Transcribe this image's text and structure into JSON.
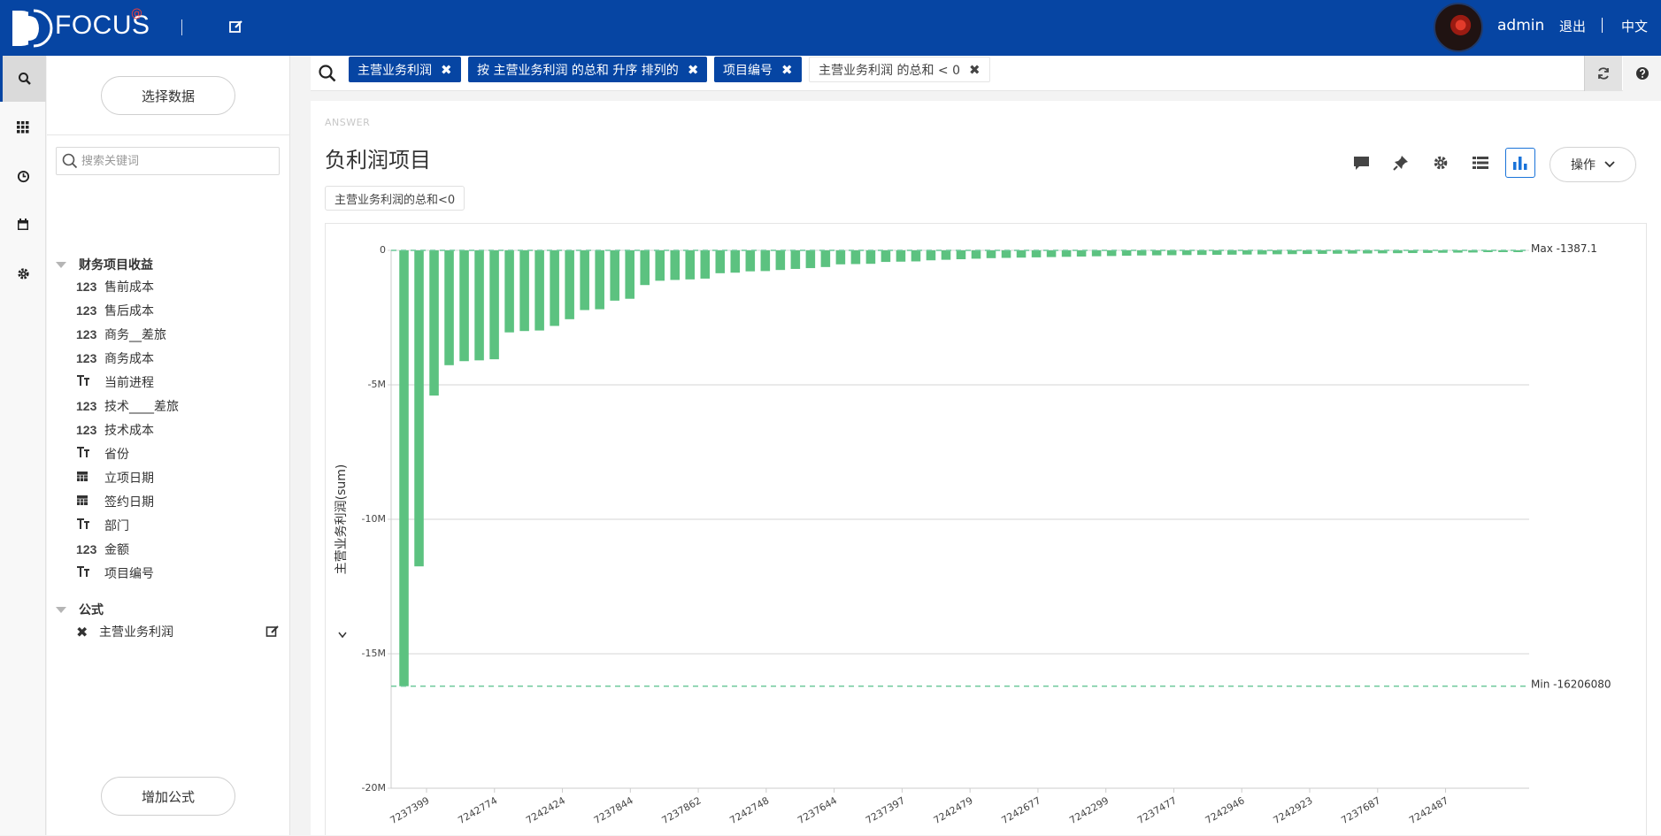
{
  "app": {
    "logo_text": "FOCUS",
    "logo_mark": "@",
    "username": "admin",
    "logout": "退出",
    "language": "中文",
    "brand_color": "#0645a3"
  },
  "rail": {
    "items": [
      {
        "icon": "search-icon"
      },
      {
        "icon": "grid-icon"
      },
      {
        "icon": "history-icon"
      },
      {
        "icon": "calendar-icon"
      },
      {
        "icon": "gear-icon"
      }
    ]
  },
  "panel": {
    "select_data": "选择数据",
    "search_placeholder": "搜索关键词",
    "group_title": "财务项目收益",
    "fields": [
      {
        "type": "123",
        "label": "售前成本"
      },
      {
        "type": "123",
        "label": "售后成本"
      },
      {
        "type": "123",
        "label": "商务__差旅"
      },
      {
        "type": "123",
        "label": "商务成本"
      },
      {
        "type": "text",
        "label": "当前进程"
      },
      {
        "type": "123",
        "label": "技术____差旅"
      },
      {
        "type": "123",
        "label": "技术成本"
      },
      {
        "type": "text",
        "label": "省份"
      },
      {
        "type": "date",
        "label": "立项日期"
      },
      {
        "type": "date",
        "label": "签约日期"
      },
      {
        "type": "text",
        "label": "部门"
      },
      {
        "type": "123",
        "label": "金额"
      },
      {
        "type": "text",
        "label": "项目编号"
      }
    ],
    "formula_group": "公式",
    "formula_item": "主营业务利润",
    "add_formula": "增加公式"
  },
  "searchbar": {
    "tokens": [
      {
        "label": "主营业务利润",
        "style": "blue"
      },
      {
        "label": "按 主营业务利润 的总和 升序 排列的",
        "style": "blue"
      },
      {
        "label": "项目编号",
        "style": "blue"
      },
      {
        "label": "主营业务利润 的总和 < 0",
        "style": "plain"
      }
    ]
  },
  "answer": {
    "label": "ANSWER",
    "title": "负利润项目",
    "filter_chip": "主营业务利润的总和<0",
    "operations": "操作"
  },
  "chart_data": {
    "type": "bar",
    "ylabel": "主营业务利润(sum)",
    "ylim": [
      -20000000,
      0
    ],
    "yticks": [
      {
        "value": 0,
        "label": "0"
      },
      {
        "value": -5000000,
        "label": "-5M"
      },
      {
        "value": -10000000,
        "label": "-10M"
      },
      {
        "value": -15000000,
        "label": "-15M"
      },
      {
        "value": -20000000,
        "label": "-20M"
      }
    ],
    "max_line": {
      "value": -1387.1,
      "label": "Max -1387.1"
    },
    "min_line": {
      "value": -16206080,
      "label": "Min -16206080"
    },
    "xtick_labels": [
      "7237399",
      "7242774",
      "7242424",
      "7237844",
      "7237862",
      "7242748",
      "7237644",
      "7237397",
      "7242479",
      "7242677",
      "7242299",
      "7237477",
      "7242946",
      "7242923",
      "7237687",
      "7242487"
    ],
    "values": [
      -16206080,
      -11750000,
      -5400000,
      -4270000,
      -4120000,
      -4090000,
      -4050000,
      -3050000,
      -3000000,
      -2980000,
      -2810000,
      -2560000,
      -2220000,
      -2190000,
      -1870000,
      -1800000,
      -1290000,
      -1130000,
      -1100000,
      -1080000,
      -1050000,
      -850000,
      -830000,
      -780000,
      -770000,
      -730000,
      -690000,
      -660000,
      -620000,
      -520000,
      -510000,
      -500000,
      -430000,
      -420000,
      -410000,
      -370000,
      -350000,
      -330000,
      -310000,
      -290000,
      -280000,
      -270000,
      -260000,
      -250000,
      -240000,
      -230000,
      -220000,
      -210000,
      -200000,
      -190000,
      -185000,
      -180000,
      -175000,
      -170000,
      -165000,
      -160000,
      -155000,
      -150000,
      -145000,
      -140000,
      -135000,
      -130000,
      -125000,
      -120000,
      -115000,
      -110000,
      -105000,
      -100000,
      -95000,
      -90000,
      -85000,
      -80000,
      -60000,
      -40000,
      -1387.1
    ],
    "bar_color": "#5cc280",
    "grid_color": "#d6d6d6",
    "ref_line_color": "#6dc99a"
  }
}
